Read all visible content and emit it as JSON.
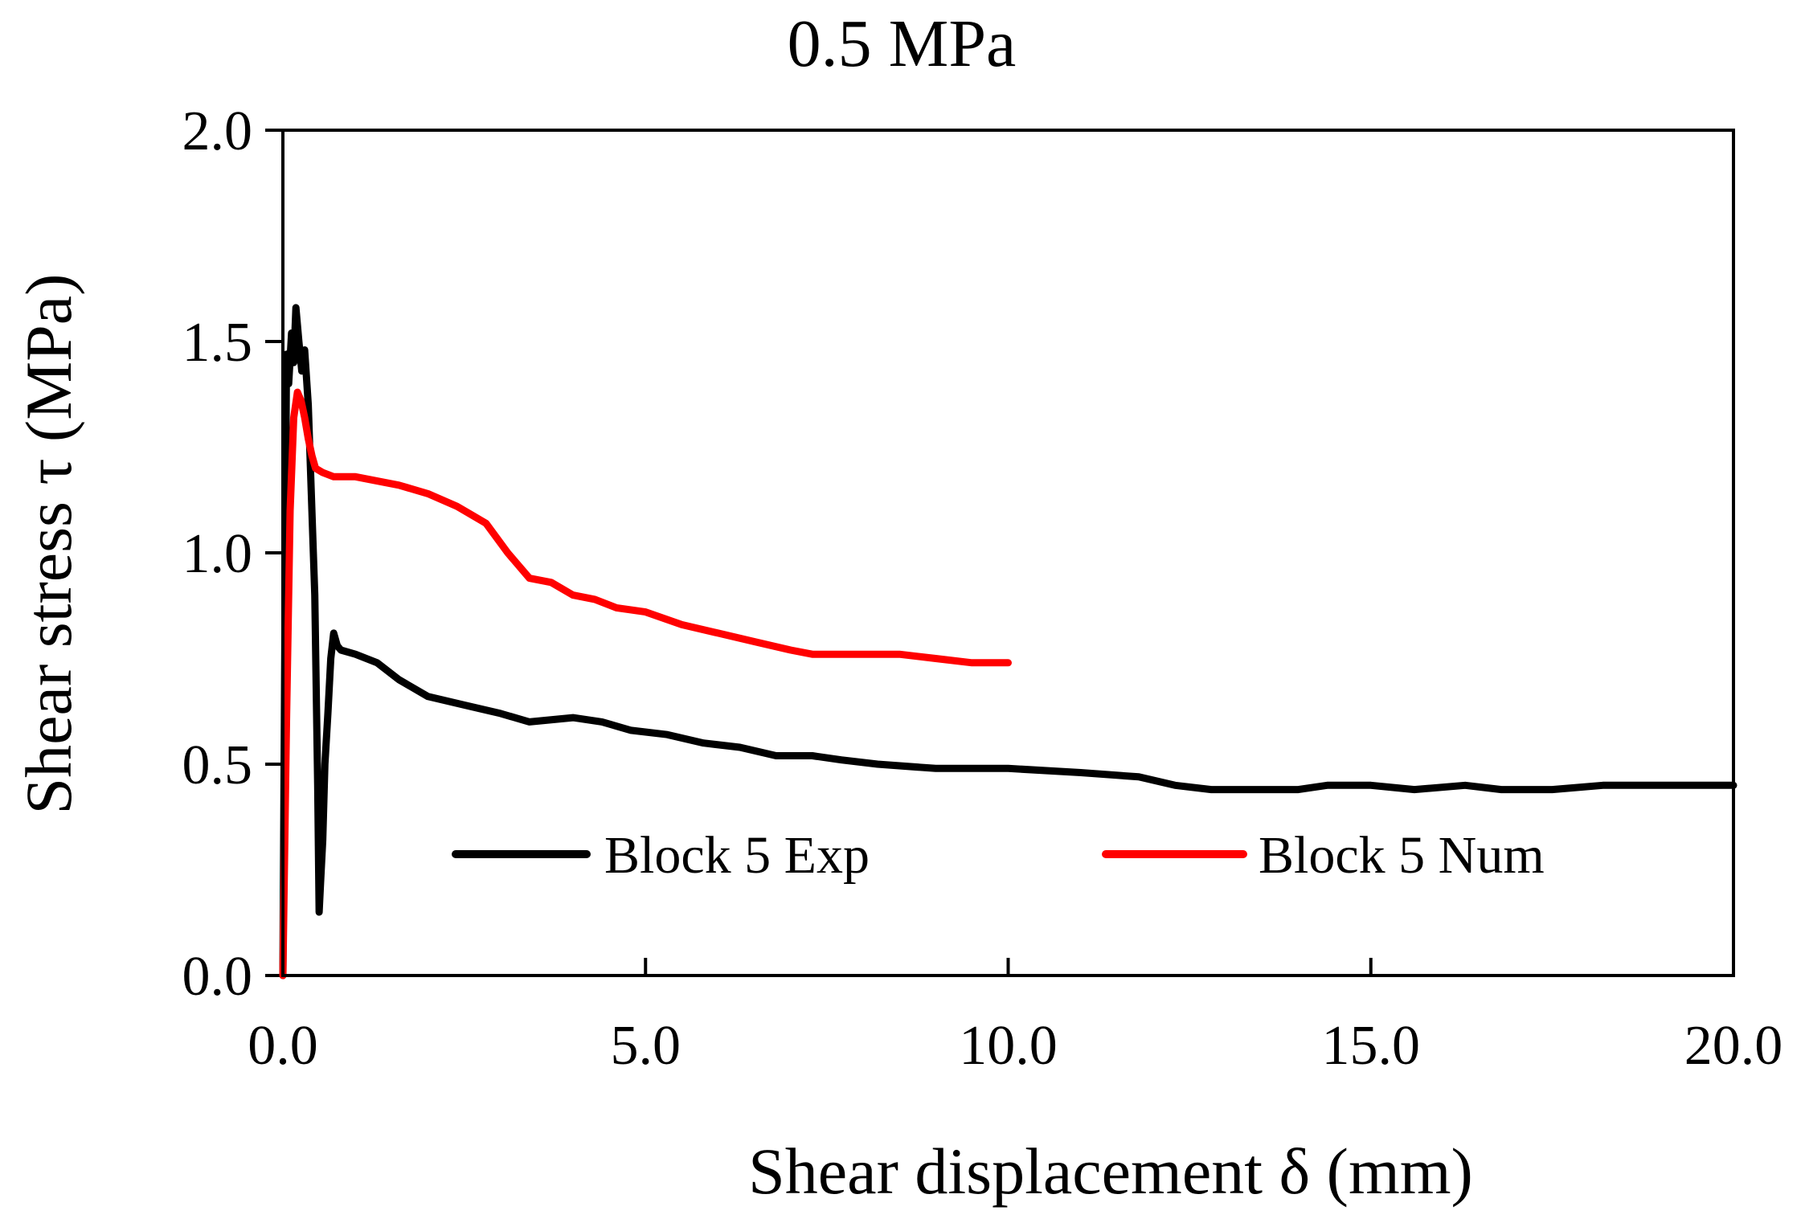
{
  "chart_data": {
    "type": "line",
    "title": "0.5 MPa",
    "xlabel": "Shear displacement δ (mm)",
    "ylabel": "Shear stress τ (MPa)",
    "xlim": [
      0,
      20
    ],
    "ylim": [
      0,
      2
    ],
    "grid": false,
    "legend_position": "inside-bottom",
    "x_ticks": [
      0,
      5,
      10,
      15,
      20
    ],
    "x_tick_labels": [
      "0.0",
      "5.0",
      "10.0",
      "15.0",
      "20.0"
    ],
    "y_ticks": [
      0,
      0.5,
      1,
      1.5,
      2
    ],
    "y_tick_labels": [
      "0.0",
      "0.5",
      "1.0",
      "1.5",
      "2.0"
    ],
    "series": [
      {
        "name": "Block 5 Exp",
        "color": "#000000",
        "x": [
          0,
          0.05,
          0.08,
          0.12,
          0.15,
          0.18,
          0.22,
          0.26,
          0.3,
          0.35,
          0.4,
          0.44,
          0.48,
          0.5,
          0.52,
          0.55,
          0.58,
          0.62,
          0.66,
          0.7,
          0.75,
          0.8,
          1.0,
          1.3,
          1.6,
          2.0,
          2.5,
          3.0,
          3.4,
          4.0,
          4.4,
          4.8,
          5.3,
          5.8,
          6.3,
          6.8,
          7.3,
          7.7,
          8.2,
          9.0,
          10.0,
          11.0,
          11.8,
          12.3,
          12.8,
          13.5,
          14.0,
          14.4,
          15.0,
          15.6,
          16.3,
          16.8,
          17.5,
          18.2,
          19.0,
          20.0
        ],
        "y": [
          0,
          1.47,
          1.4,
          1.52,
          1.45,
          1.58,
          1.5,
          1.43,
          1.48,
          1.35,
          1.1,
          0.9,
          0.45,
          0.15,
          0.22,
          0.32,
          0.5,
          0.62,
          0.75,
          0.81,
          0.78,
          0.77,
          0.76,
          0.74,
          0.7,
          0.66,
          0.64,
          0.62,
          0.6,
          0.61,
          0.6,
          0.58,
          0.57,
          0.55,
          0.54,
          0.52,
          0.52,
          0.51,
          0.5,
          0.49,
          0.49,
          0.48,
          0.47,
          0.45,
          0.44,
          0.44,
          0.44,
          0.45,
          0.45,
          0.44,
          0.45,
          0.44,
          0.44,
          0.45,
          0.45,
          0.45
        ]
      },
      {
        "name": "Block 5 Num",
        "color": "#ff0000",
        "x": [
          0,
          0.05,
          0.1,
          0.15,
          0.2,
          0.25,
          0.3,
          0.35,
          0.4,
          0.45,
          0.55,
          0.7,
          1.0,
          1.3,
          1.6,
          2.0,
          2.4,
          2.8,
          3.1,
          3.4,
          3.7,
          4.0,
          4.3,
          4.6,
          5.0,
          5.5,
          6.0,
          6.5,
          7.0,
          7.3,
          8.0,
          8.5,
          9.0,
          9.5,
          10.0
        ],
        "y": [
          0,
          0.6,
          1.1,
          1.32,
          1.38,
          1.36,
          1.32,
          1.27,
          1.23,
          1.2,
          1.19,
          1.18,
          1.18,
          1.17,
          1.16,
          1.14,
          1.11,
          1.07,
          1.0,
          0.94,
          0.93,
          0.9,
          0.89,
          0.87,
          0.86,
          0.83,
          0.81,
          0.79,
          0.77,
          0.76,
          0.76,
          0.76,
          0.75,
          0.74,
          0.74
        ]
      }
    ]
  }
}
